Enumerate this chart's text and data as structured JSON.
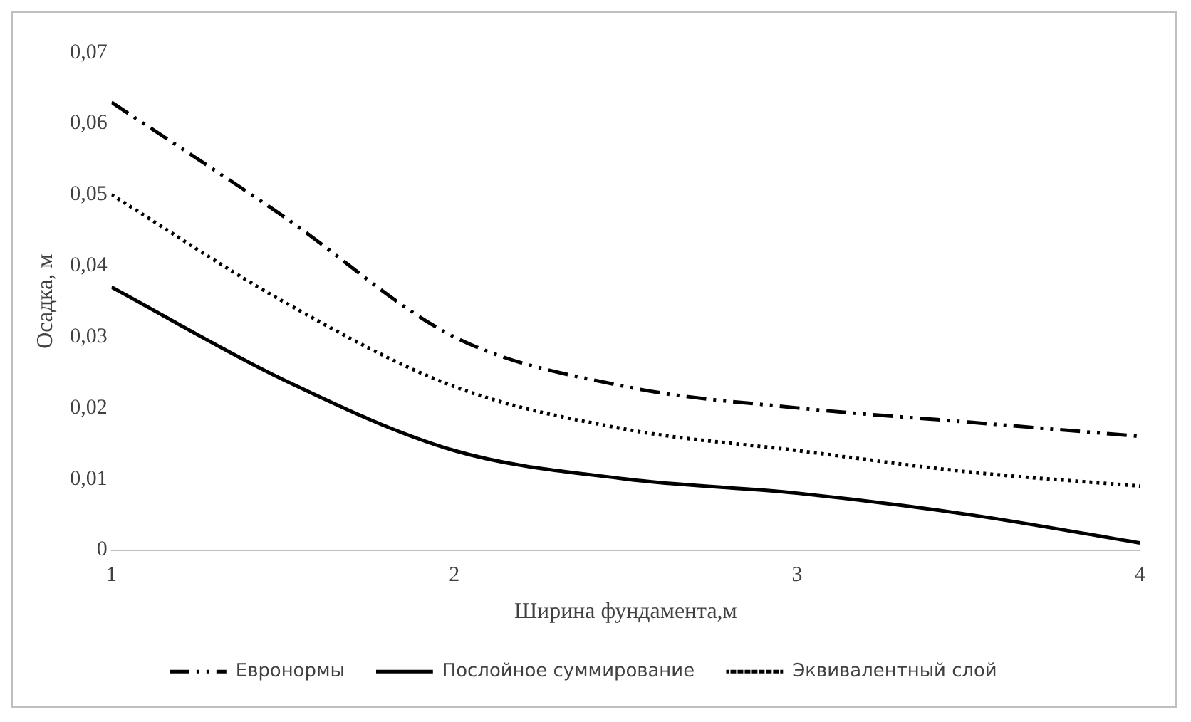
{
  "chart_data": {
    "type": "line",
    "xlabel": "Ширина фундамента,м",
    "ylabel": "Осадка, м",
    "x": [
      1,
      1.5,
      2,
      2.5,
      3,
      3.5,
      4
    ],
    "series": [
      {
        "name": "Евронормы",
        "color": "#000000",
        "line_style": "dashdot",
        "values": [
          0.063,
          0.047,
          0.03,
          0.023,
          0.02,
          0.018,
          0.016
        ]
      },
      {
        "name": "Послойное суммирование",
        "color": "#000000",
        "line_style": "solid",
        "values": [
          0.037,
          0.024,
          0.014,
          0.01,
          0.008,
          0.005,
          0.001
        ]
      },
      {
        "name": "Эквивалентный слой",
        "color": "#000000",
        "line_style": "dotted",
        "values": [
          0.05,
          0.035,
          0.023,
          0.017,
          0.014,
          0.011,
          0.009
        ]
      }
    ],
    "xlim": [
      1,
      4
    ],
    "xticks": [
      1,
      2,
      3,
      4
    ],
    "ylim": [
      0,
      0.07
    ],
    "yticks": [
      {
        "value": 0,
        "label": "0"
      },
      {
        "value": 0.01,
        "label": "0,01"
      },
      {
        "value": 0.02,
        "label": "0,02"
      },
      {
        "value": 0.03,
        "label": "0,03"
      },
      {
        "value": 0.04,
        "label": "0,04"
      },
      {
        "value": 0.05,
        "label": "0,05"
      },
      {
        "value": 0.06,
        "label": "0,06"
      },
      {
        "value": 0.07,
        "label": "0,07"
      }
    ],
    "grid": false,
    "legend": "bottom",
    "marker": "none"
  }
}
